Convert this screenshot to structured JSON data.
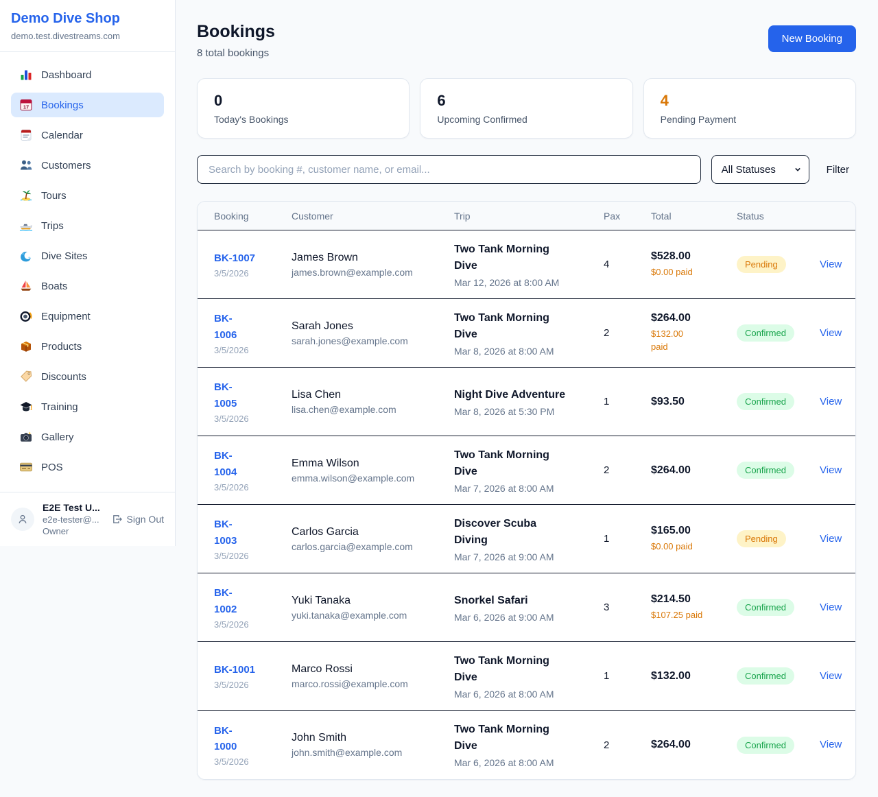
{
  "brand": {
    "name": "Demo Dive Shop",
    "domain": "demo.test.divestreams.com"
  },
  "colors": {
    "accent": "#2563eb",
    "pending_text": "#d97706",
    "pending_bg": "#fef3c7",
    "confirmed_text": "#16a34a",
    "confirmed_bg": "#dcfce7",
    "paid_text": "#d97706",
    "pending_stat": "#d97706"
  },
  "sidebar": {
    "items": [
      {
        "label": "Dashboard",
        "icon": "bar-chart-icon",
        "active": false
      },
      {
        "label": "Bookings",
        "icon": "calendar-date-icon",
        "active": true
      },
      {
        "label": "Calendar",
        "icon": "calendar-icon",
        "active": false
      },
      {
        "label": "Customers",
        "icon": "people-icon",
        "active": false
      },
      {
        "label": "Tours",
        "icon": "island-icon",
        "active": false
      },
      {
        "label": "Trips",
        "icon": "speedboat-icon",
        "active": false
      },
      {
        "label": "Dive Sites",
        "icon": "wave-icon",
        "active": false
      },
      {
        "label": "Boats",
        "icon": "sailboat-icon",
        "active": false
      },
      {
        "label": "Equipment",
        "icon": "diving-mask-icon",
        "active": false
      },
      {
        "label": "Products",
        "icon": "package-icon",
        "active": false
      },
      {
        "label": "Discounts",
        "icon": "tag-icon",
        "active": false
      },
      {
        "label": "Training",
        "icon": "graduation-cap-icon",
        "active": false
      },
      {
        "label": "Gallery",
        "icon": "camera-icon",
        "active": false
      },
      {
        "label": "POS",
        "icon": "credit-card-icon",
        "active": false
      }
    ],
    "user": {
      "name": "E2E Test U...",
      "email": "e2e-tester@...",
      "role": "Owner",
      "sign_out_label": "Sign Out"
    }
  },
  "header": {
    "title": "Bookings",
    "subtitle": "8 total bookings",
    "new_booking_label": "New Booking"
  },
  "stats": [
    {
      "value": "0",
      "label": "Today's Bookings",
      "highlight": false
    },
    {
      "value": "6",
      "label": "Upcoming Confirmed",
      "highlight": false
    },
    {
      "value": "4",
      "label": "Pending Payment",
      "highlight": true
    }
  ],
  "filters": {
    "search_placeholder": "Search by booking #, customer name, or email...",
    "status_selected": "All Statuses",
    "filter_label": "Filter"
  },
  "table": {
    "columns": [
      "Booking",
      "Customer",
      "Trip",
      "Pax",
      "Total",
      "Status",
      ""
    ],
    "rows": [
      {
        "id_lines": [
          "BK-1007"
        ],
        "date": "3/5/2026",
        "customer": "James Brown",
        "email": "james.brown@example.com",
        "trip_lines": [
          "Two Tank Morning",
          "Dive"
        ],
        "trip_datetime": "Mar 12, 2026 at 8:00 AM",
        "pax": "4",
        "total": "$528.00",
        "paid_lines": [
          "$0.00 paid"
        ],
        "status": "Pending",
        "action": "View"
      },
      {
        "id_lines": [
          "BK-",
          "1006"
        ],
        "date": "3/5/2026",
        "customer": "Sarah Jones",
        "email": "sarah.jones@example.com",
        "trip_lines": [
          "Two Tank Morning",
          "Dive"
        ],
        "trip_datetime": "Mar 8, 2026 at 8:00 AM",
        "pax": "2",
        "total": "$264.00",
        "paid_lines": [
          "$132.00",
          "paid"
        ],
        "status": "Confirmed",
        "action": "View"
      },
      {
        "id_lines": [
          "BK-",
          "1005"
        ],
        "date": "3/5/2026",
        "customer": "Lisa Chen",
        "email": "lisa.chen@example.com",
        "trip_lines": [
          "Night Dive Adventure"
        ],
        "trip_datetime": "Mar 8, 2026 at 5:30 PM",
        "pax": "1",
        "total": "$93.50",
        "paid_lines": [],
        "status": "Confirmed",
        "action": "View"
      },
      {
        "id_lines": [
          "BK-",
          "1004"
        ],
        "date": "3/5/2026",
        "customer": "Emma Wilson",
        "email": "emma.wilson@example.com",
        "trip_lines": [
          "Two Tank Morning",
          "Dive"
        ],
        "trip_datetime": "Mar 7, 2026 at 8:00 AM",
        "pax": "2",
        "total": "$264.00",
        "paid_lines": [],
        "status": "Confirmed",
        "action": "View"
      },
      {
        "id_lines": [
          "BK-",
          "1003"
        ],
        "date": "3/5/2026",
        "customer": "Carlos Garcia",
        "email": "carlos.garcia@example.com",
        "trip_lines": [
          "Discover Scuba",
          "Diving"
        ],
        "trip_datetime": "Mar 7, 2026 at 9:00 AM",
        "pax": "1",
        "total": "$165.00",
        "paid_lines": [
          "$0.00 paid"
        ],
        "status": "Pending",
        "action": "View"
      },
      {
        "id_lines": [
          "BK-",
          "1002"
        ],
        "date": "3/5/2026",
        "customer": "Yuki Tanaka",
        "email": "yuki.tanaka@example.com",
        "trip_lines": [
          "Snorkel Safari"
        ],
        "trip_datetime": "Mar 6, 2026 at 9:00 AM",
        "pax": "3",
        "total": "$214.50",
        "paid_lines": [
          "$107.25 paid"
        ],
        "status": "Confirmed",
        "action": "View"
      },
      {
        "id_lines": [
          "BK-1001"
        ],
        "date": "3/5/2026",
        "customer": "Marco Rossi",
        "email": "marco.rossi@example.com",
        "trip_lines": [
          "Two Tank Morning",
          "Dive"
        ],
        "trip_datetime": "Mar 6, 2026 at 8:00 AM",
        "pax": "1",
        "total": "$132.00",
        "paid_lines": [],
        "status": "Confirmed",
        "action": "View"
      },
      {
        "id_lines": [
          "BK-",
          "1000"
        ],
        "date": "3/5/2026",
        "customer": "John Smith",
        "email": "john.smith@example.com",
        "trip_lines": [
          "Two Tank Morning",
          "Dive"
        ],
        "trip_datetime": "Mar 6, 2026 at 8:00 AM",
        "pax": "2",
        "total": "$264.00",
        "paid_lines": [],
        "status": "Confirmed",
        "action": "View"
      }
    ]
  }
}
